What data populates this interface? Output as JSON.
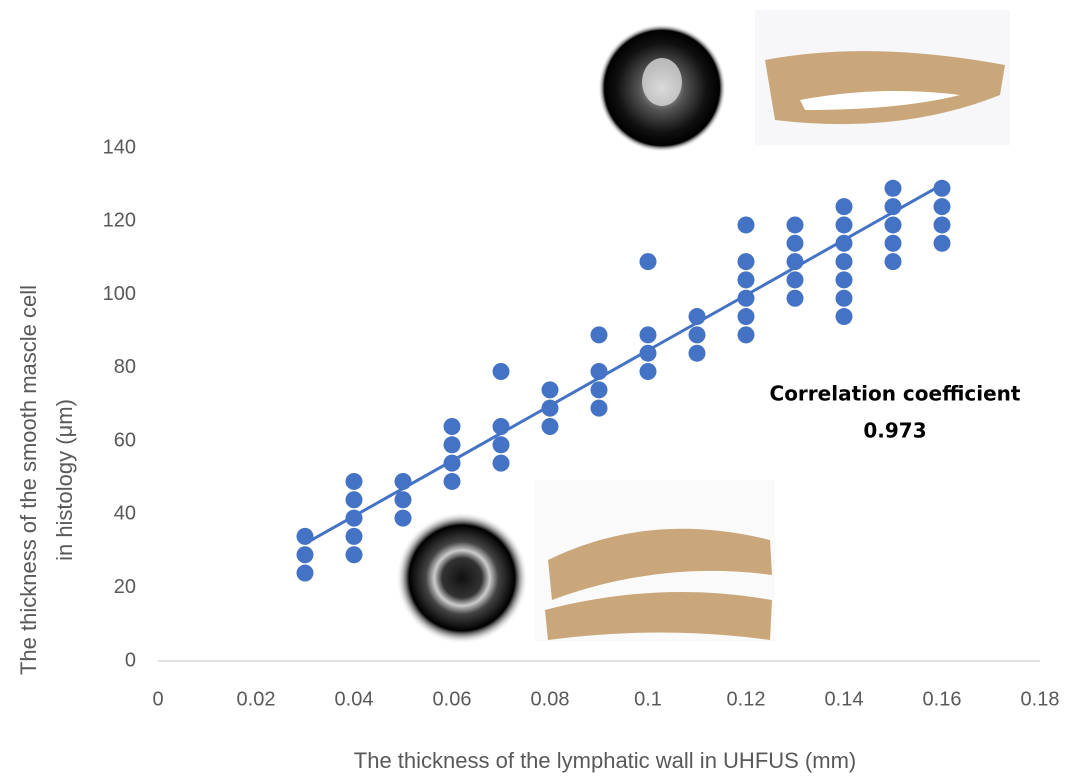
{
  "chart_data": {
    "type": "scatter",
    "x_label": "The thickness of the lymphatic wall in UHFUS (mm)",
    "y_label": [
      "The thickness of the smooth mascle cell",
      "in histology (μm)"
    ],
    "annotation": [
      "Correlation coefficient",
      "0.973"
    ],
    "series": [
      {
        "color": "#4472c4",
        "x": [
          0.03,
          0.03,
          0.03,
          0.04,
          0.04,
          0.04,
          0.04,
          0.04,
          0.05,
          0.05,
          0.05,
          0.06,
          0.06,
          0.06,
          0.06,
          0.07,
          0.07,
          0.07,
          0.07,
          0.08,
          0.08,
          0.08,
          0.09,
          0.09,
          0.09,
          0.09,
          0.1,
          0.1,
          0.1,
          0.1,
          0.11,
          0.11,
          0.11,
          0.12,
          0.12,
          0.12,
          0.12,
          0.12,
          0.12,
          0.13,
          0.13,
          0.13,
          0.13,
          0.13,
          0.14,
          0.14,
          0.14,
          0.14,
          0.14,
          0.14,
          0.14,
          0.15,
          0.15,
          0.15,
          0.15,
          0.15,
          0.16,
          0.16,
          0.16,
          0.16
        ],
        "values": [
          34,
          29,
          24,
          49,
          44,
          39,
          34,
          29,
          49,
          44,
          39,
          64,
          59,
          54,
          49,
          79,
          64,
          59,
          54,
          74,
          69,
          64,
          89,
          79,
          74,
          69,
          109,
          89,
          84,
          79,
          94,
          89,
          84,
          119,
          109,
          104,
          99,
          94,
          89,
          119,
          114,
          109,
          104,
          99,
          124,
          119,
          114,
          109,
          104,
          99,
          94,
          129,
          124,
          119,
          114,
          109,
          129,
          124,
          119,
          114
        ]
      }
    ],
    "trendline": {
      "color": "#4472c4",
      "x": [
        0.03,
        0.16
      ],
      "values": [
        32,
        130
      ]
    },
    "xlim": [
      0,
      0.18
    ],
    "xticks": [
      0,
      0.02,
      0.04,
      0.06,
      0.08,
      0.1,
      0.12,
      0.14,
      0.16,
      0.18
    ],
    "ylim": [
      0,
      140
    ],
    "yticks": [
      0,
      20,
      40,
      60,
      80,
      100,
      120,
      140
    ],
    "grid": false
  }
}
